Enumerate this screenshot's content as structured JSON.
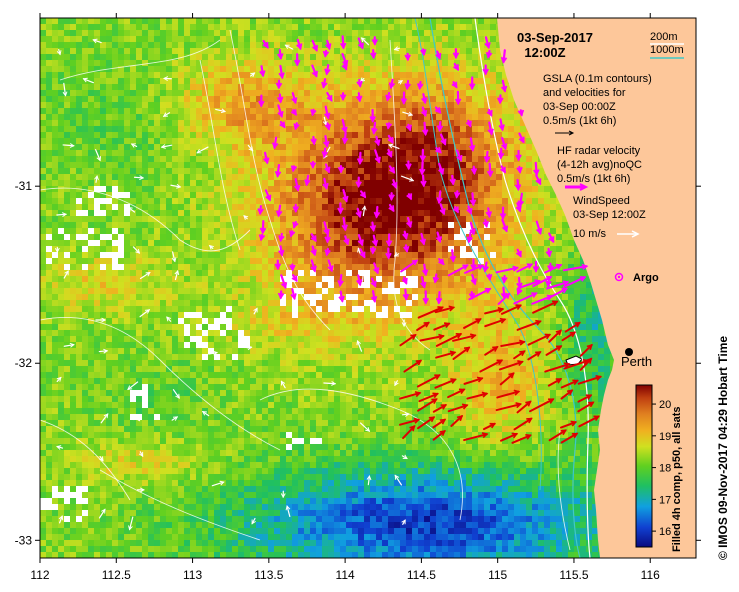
{
  "header": {
    "date": "03-Sep-2017",
    "time": "12:00Z"
  },
  "depth_legend": {
    "contour_200": "200m",
    "contour_1000": "1000m",
    "color_200": "#ffffff",
    "color_1000": "#40c8c8"
  },
  "annotations": {
    "gsla_line1": "GSLA (0.1m contours)",
    "gsla_line2": "and velocities for",
    "gsla_line3": "03-Sep 00:00Z",
    "gsla_scale": "0.5m/s (1kt 6h)",
    "hf_line1": "HF radar velocity",
    "hf_line2": "(4-12h avg)noQC",
    "hf_scale": "0.5m/s (1kt 6h)",
    "wind_line1": "WindSpeed",
    "wind_line2": "03-Sep 12:00Z",
    "wind_scale": "10 m/s"
  },
  "markers": {
    "argo_label": "Argo",
    "city_label": "Perth"
  },
  "axes": {
    "x_ticks": [
      "112",
      "112.5",
      "113",
      "113.5",
      "114",
      "114.5",
      "115",
      "115.5",
      "116"
    ],
    "y_ticks": [
      "-31",
      "-32",
      "-33"
    ],
    "x_range": [
      112,
      116.3
    ],
    "y_range": [
      -33.1,
      -30.05
    ]
  },
  "colorbar": {
    "ticks": [
      "16",
      "17",
      "18",
      "19",
      "20"
    ],
    "range": [
      15.5,
      20.6
    ],
    "label": "Filled 4h comp, p50, all sats"
  },
  "credit": "© IMOS 09-Nov-2017 04:29 Hobart Time",
  "colors": {
    "land": "#fdc79a",
    "ocean_cold": "#1020a0",
    "ocean_warm": "#8b1a00",
    "hf_vectors": "#ff00ff",
    "gsla_vectors": "#ff00ff",
    "hf_strong_vectors": "#e00000",
    "argo": "#ff00ff"
  }
}
